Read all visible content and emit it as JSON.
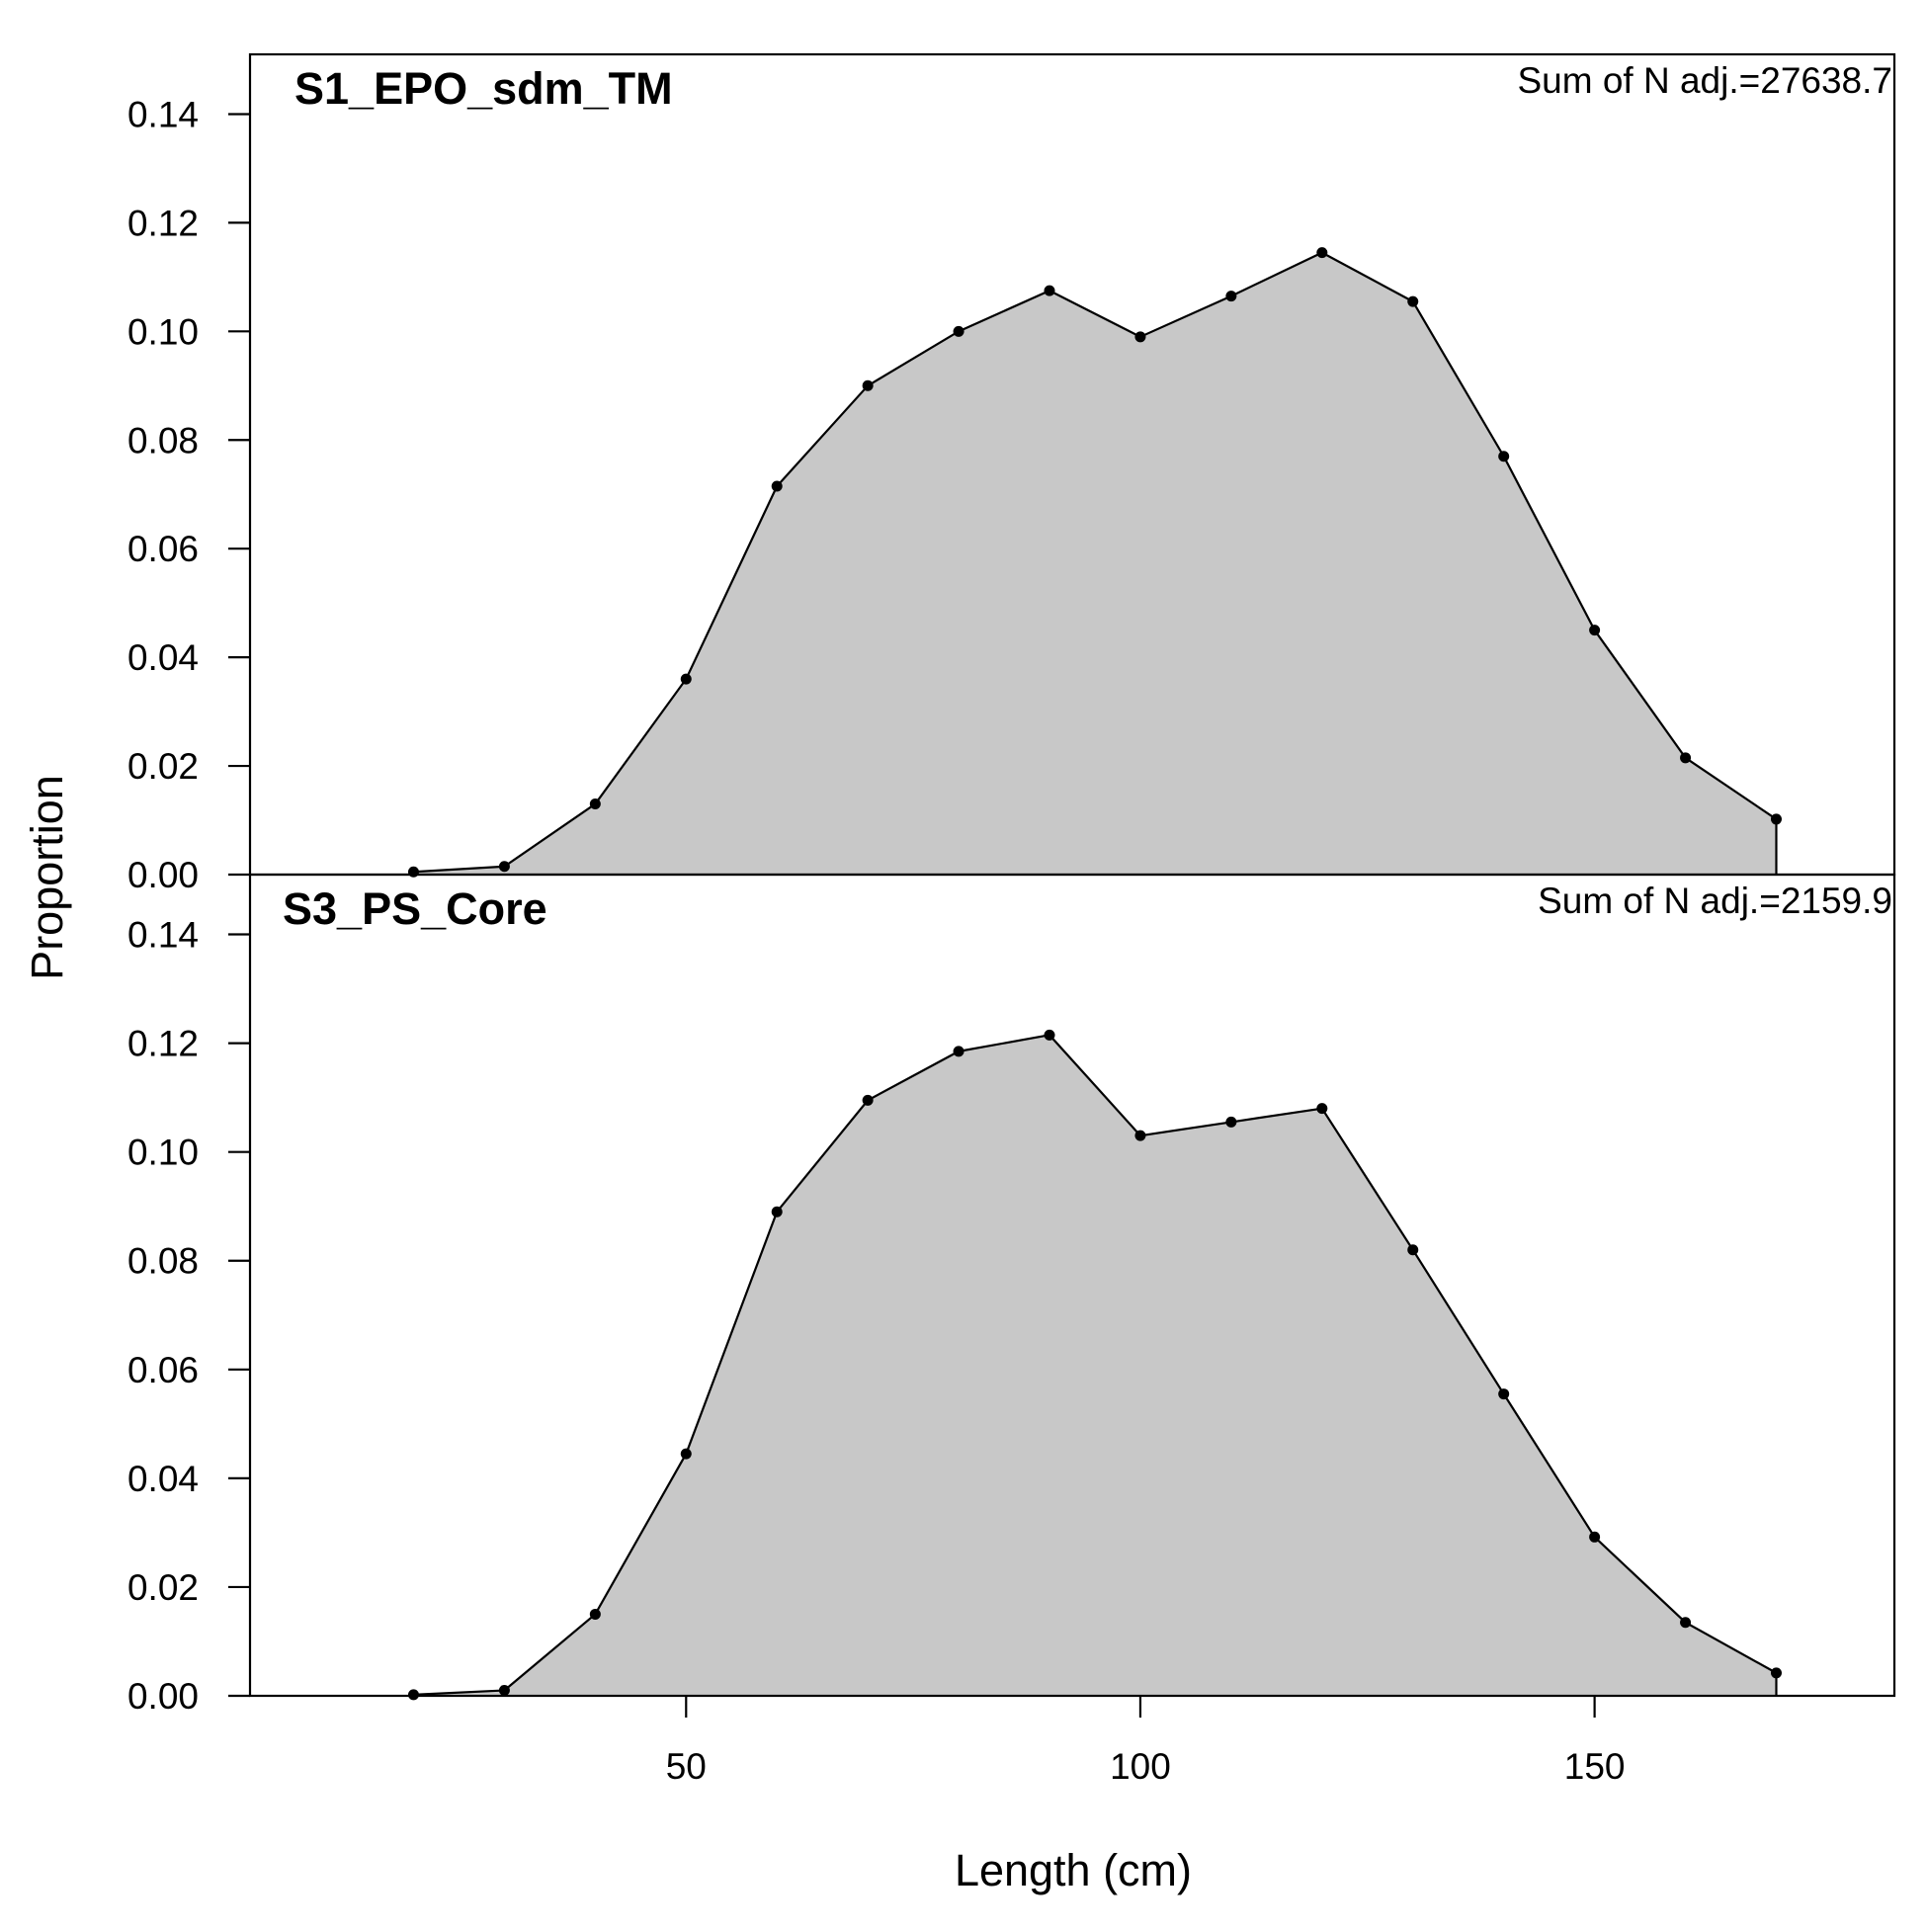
{
  "chart_data": {
    "type": "area",
    "xlabel": "Length (cm)",
    "ylabel": "Proportion",
    "xlim": [
      2,
      183
    ],
    "ylim": [
      0,
      0.151
    ],
    "x_ticks": [
      50,
      100,
      150
    ],
    "y_ticks": [
      0.0,
      0.02,
      0.04,
      0.06,
      0.08,
      0.1,
      0.12,
      0.14
    ],
    "y_tick_labels": [
      "0.00",
      "0.02",
      "0.04",
      "0.06",
      "0.08",
      "0.10",
      "0.12",
      "0.14"
    ],
    "x_tick_labels": [
      "50",
      "100",
      "150"
    ],
    "grid": false,
    "fill_color": "#c8c8c8",
    "line_color": "#000000",
    "panels": [
      {
        "title": "S1_EPO_sdm_TM",
        "note": "Sum of N adj.=27638.7",
        "x": [
          20,
          30,
          40,
          50,
          60,
          70,
          80,
          90,
          100,
          110,
          120,
          130,
          140,
          150,
          160,
          170
        ],
        "y": [
          0.0005,
          0.0015,
          0.013,
          0.036,
          0.0715,
          0.09,
          0.1,
          0.1075,
          0.099,
          0.1065,
          0.1145,
          0.1055,
          0.077,
          0.045,
          0.0215,
          0.0102
        ]
      },
      {
        "title": "S3_PS_Core",
        "note": "Sum of N adj.=2159.9",
        "x": [
          20,
          30,
          40,
          50,
          60,
          70,
          80,
          90,
          100,
          110,
          120,
          130,
          140,
          150,
          160,
          170
        ],
        "y": [
          0.0002,
          0.001,
          0.015,
          0.0445,
          0.089,
          0.1095,
          0.1185,
          0.1215,
          0.103,
          0.1055,
          0.108,
          0.082,
          0.0555,
          0.0292,
          0.0135,
          0.0042
        ]
      }
    ]
  }
}
